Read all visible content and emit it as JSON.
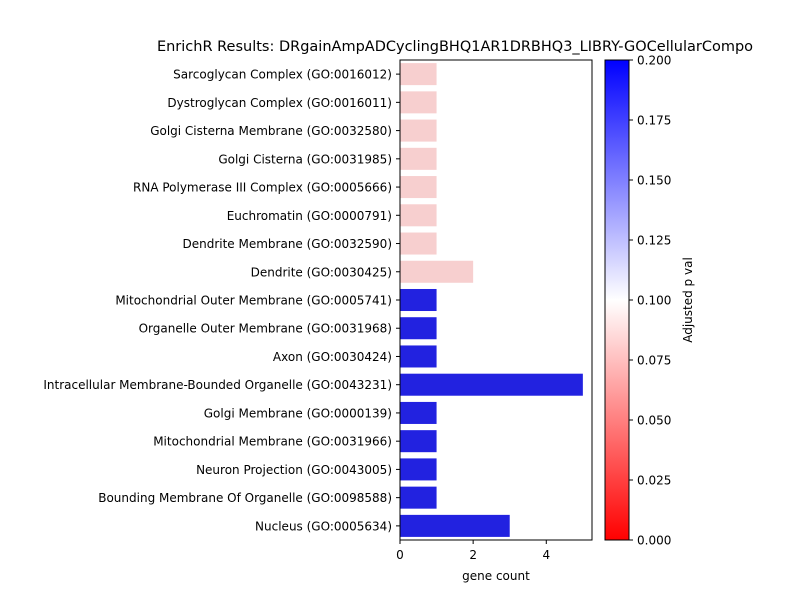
{
  "chart_data": {
    "type": "bar",
    "orientation": "horizontal",
    "title": "EnrichR Results: DRgainAmpADCyclingBHQ1AR1DRBHQ3_LIBRY-GOCellularCompo",
    "xlabel": "gene count",
    "ylabel": "",
    "xlim": [
      0,
      5.25
    ],
    "xticks": [
      "0",
      "2",
      "4"
    ],
    "grid": false,
    "categories": [
      "Sarcoglycan Complex (GO:0016012)",
      "Dystroglycan Complex (GO:0016011)",
      "Golgi Cisterna Membrane (GO:0032580)",
      "Golgi Cisterna (GO:0031985)",
      "RNA Polymerase III Complex (GO:0005666)",
      "Euchromatin (GO:0000791)",
      "Dendrite Membrane (GO:0032590)",
      "Dendrite (GO:0030425)",
      "Mitochondrial Outer Membrane (GO:0005741)",
      "Organelle Outer Membrane (GO:0031968)",
      "Axon (GO:0030424)",
      "Intracellular Membrane-Bounded Organelle (GO:0043231)",
      "Golgi Membrane (GO:0000139)",
      "Mitochondrial Membrane (GO:0031966)",
      "Neuron Projection (GO:0043005)",
      "Bounding Membrane Of Organelle (GO:0098588)",
      "Nucleus (GO:0005634)"
    ],
    "values": [
      1,
      1,
      1,
      1,
      1,
      1,
      1,
      2,
      1,
      1,
      1,
      5,
      1,
      1,
      1,
      1,
      3
    ],
    "adjusted_p_val": [
      0.085,
      0.085,
      0.085,
      0.085,
      0.085,
      0.085,
      0.085,
      0.085,
      0.2,
      0.2,
      0.2,
      0.2,
      0.2,
      0.2,
      0.2,
      0.2,
      0.2
    ],
    "bar_colors": [
      "#f7cfcf",
      "#f7cfcf",
      "#f7cfcf",
      "#f7cfcf",
      "#f7cfcf",
      "#f7cfcf",
      "#f7cfcf",
      "#f7cfcf",
      "#2222e0",
      "#2222e0",
      "#2222e0",
      "#2222e0",
      "#2222e0",
      "#2222e0",
      "#2222e0",
      "#2222e0",
      "#2222e0"
    ],
    "colorbar": {
      "label": "Adjusted p val",
      "range": [
        0,
        0.2
      ],
      "ticks": [
        "0.000",
        "0.025",
        "0.050",
        "0.075",
        "0.100",
        "0.125",
        "0.150",
        "0.175",
        "0.200"
      ],
      "colors": [
        "#ff0000",
        "#ffffff",
        "#0000ff"
      ]
    }
  }
}
